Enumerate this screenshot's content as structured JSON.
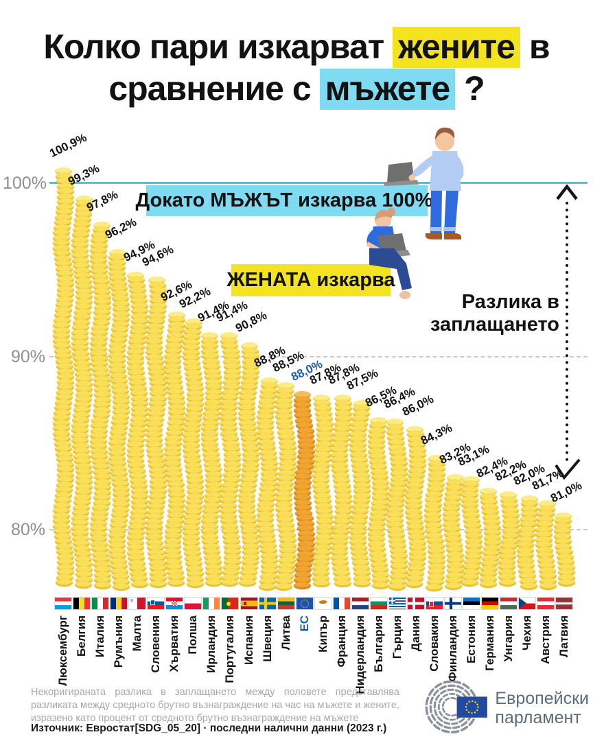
{
  "title": {
    "l1a": "Колко пари изкарват ",
    "l1b": "жените",
    "l1c": " в",
    "l2a": "сравнение с ",
    "l2b": "мъжете",
    "l2c": " ?"
  },
  "callouts": {
    "men_banner": "Докато МЪЖЪТ изкарва 100%,",
    "women_banner": "ЖЕНАТА изкарва",
    "gap_line1": "Разлика в",
    "gap_line2": "заплащането"
  },
  "axis": {
    "ticks": [
      "100%",
      "90%",
      "80%"
    ]
  },
  "chart_data": {
    "type": "bar",
    "unit": "%",
    "title": "Колко пари изкарват жените в сравнение с мъжете ?",
    "categories": [
      "Люксембург",
      "Белгия",
      "Италия",
      "Румъния",
      "Малта",
      "Словения",
      "Хърватия",
      "Полша",
      "Ирландия",
      "Португалия",
      "Испания",
      "Швеция",
      "Литва",
      "ЕС",
      "Кипър",
      "Франция",
      "Нидерландия",
      "България",
      "Гърция",
      "Дания",
      "Словакия",
      "Финландия",
      "Естония",
      "Германия",
      "Унгария",
      "Чехия",
      "Австрия",
      "Латвия"
    ],
    "values": [
      100.9,
      99.3,
      97.8,
      96.2,
      94.9,
      94.6,
      92.6,
      92.2,
      91.4,
      91.4,
      90.8,
      88.8,
      88.5,
      88.0,
      87.8,
      87.8,
      87.5,
      86.5,
      86.4,
      86.0,
      84.3,
      83.2,
      83.1,
      82.4,
      82.2,
      82.0,
      81.7,
      81.0
    ],
    "flags": [
      "lu",
      "be",
      "it",
      "ro",
      "mt",
      "si",
      "hr",
      "pl",
      "ie",
      "pt",
      "es",
      "se",
      "lt",
      "eu",
      "cy",
      "fr",
      "nl",
      "bg",
      "el",
      "dk",
      "sk",
      "fi",
      "ee",
      "de",
      "hu",
      "cz",
      "at",
      "lv"
    ],
    "highlight_index": 13,
    "highlight_label": "ЕС",
    "baseline_value": 100,
    "ylim": [
      76,
      101
    ],
    "grid": "horizontal dashed at 90% and 80%, solid reference line at 100%",
    "decimal_separator": ","
  },
  "footer": {
    "note": "Некоригираната разлика в заплащането между половете представлява разликата между средното брутно възнаграждение на час на мъжете и жените, изразено като процент от средното брутно възнаграждение на мъжете",
    "source": "Източник: Евростат[SDG_05_20]  ·  последни налични данни (2023 г.)"
  },
  "logo": {
    "line1": "Европейски",
    "line2": "парламент"
  },
  "colors": {
    "highlight_yellow": "#F3E41F",
    "highlight_cyan": "#7EDBF2",
    "coin_yellow": "#FAE05A",
    "coin_eu_orange": "#F2A430",
    "line_100": "#3EC6EA",
    "eu_text_blue": "#1B5FB0"
  }
}
